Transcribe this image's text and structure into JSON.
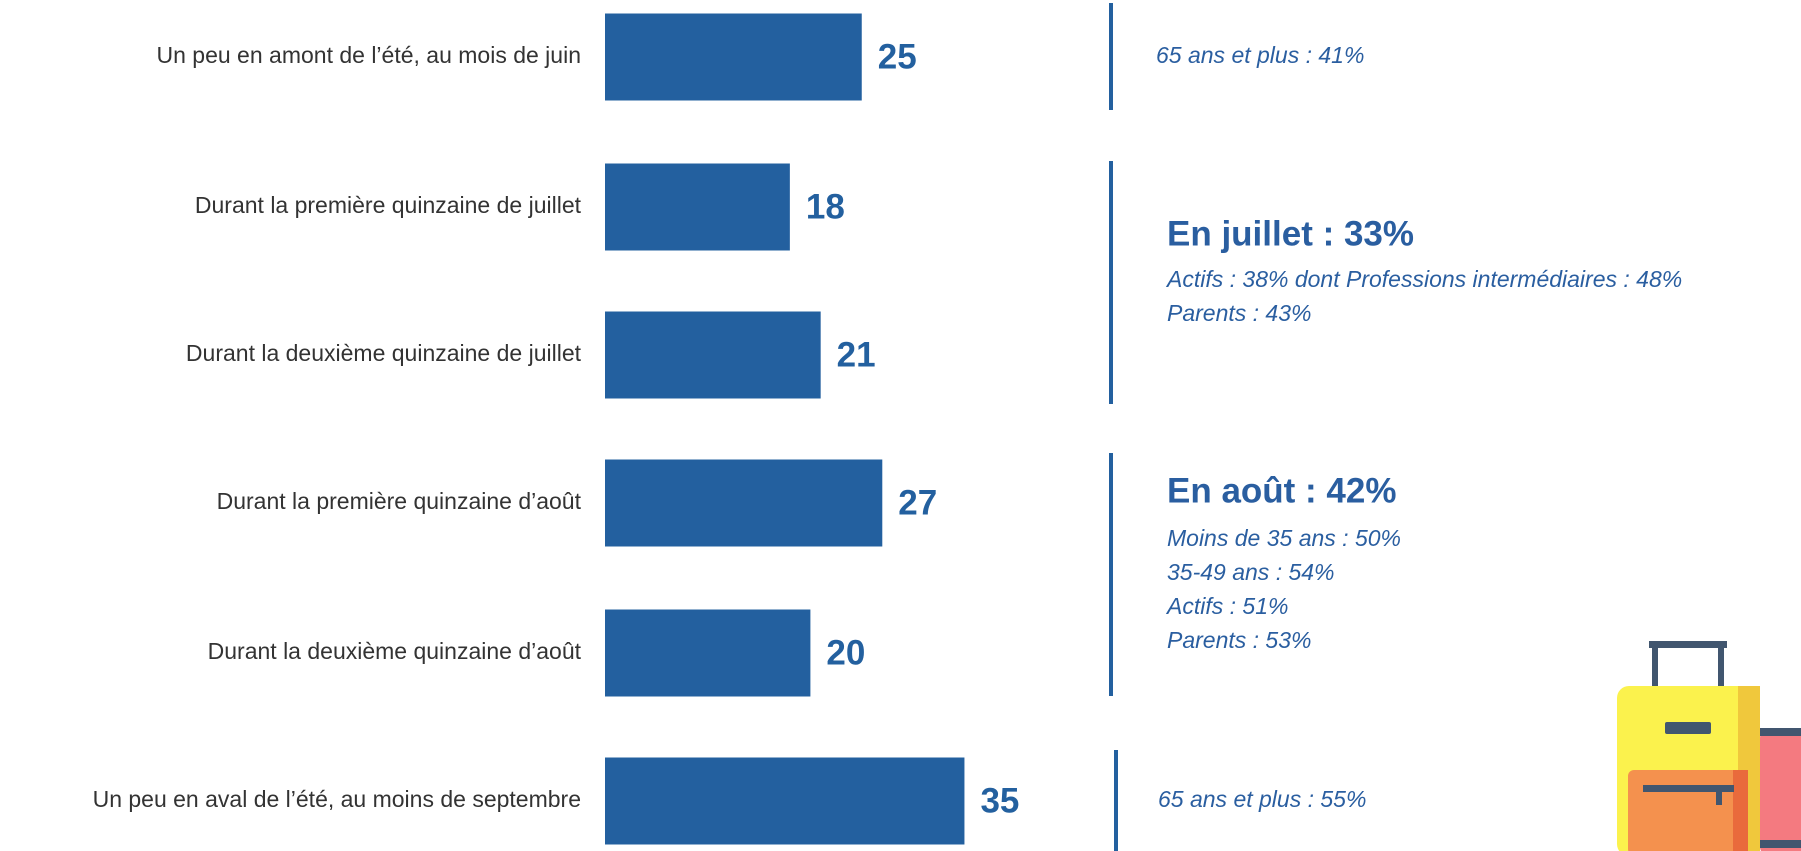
{
  "chart_data": {
    "type": "bar",
    "orientation": "horizontal",
    "categories": [
      "Un peu en amont de l’été, au mois de juin",
      "Durant la première quinzaine de juillet",
      "Durant la deuxième quinzaine de juillet",
      "Durant la première quinzaine d’août",
      "Durant la deuxième quinzaine d’août",
      "Un peu en aval de l’été, au moins de septembre"
    ],
    "values": [
      25,
      18,
      21,
      27,
      20,
      35
    ],
    "color": "#23609f",
    "annotations": [
      {
        "lines": [
          "65 ans et plus : 41%"
        ]
      },
      {
        "title": "En juillet : 33%",
        "lines": [
          "Actifs : 38% dont Professions intermédiaires : 48%",
          "Parents : 43%"
        ]
      },
      {
        "title": "En août : 42%",
        "lines": [
          "Moins de 35 ans : 50%",
          "35-49 ans : 54%",
          "Actifs : 51%",
          "Parents : 53%"
        ]
      },
      {
        "lines": [
          "65 ans et plus : 55%"
        ]
      }
    ]
  }
}
